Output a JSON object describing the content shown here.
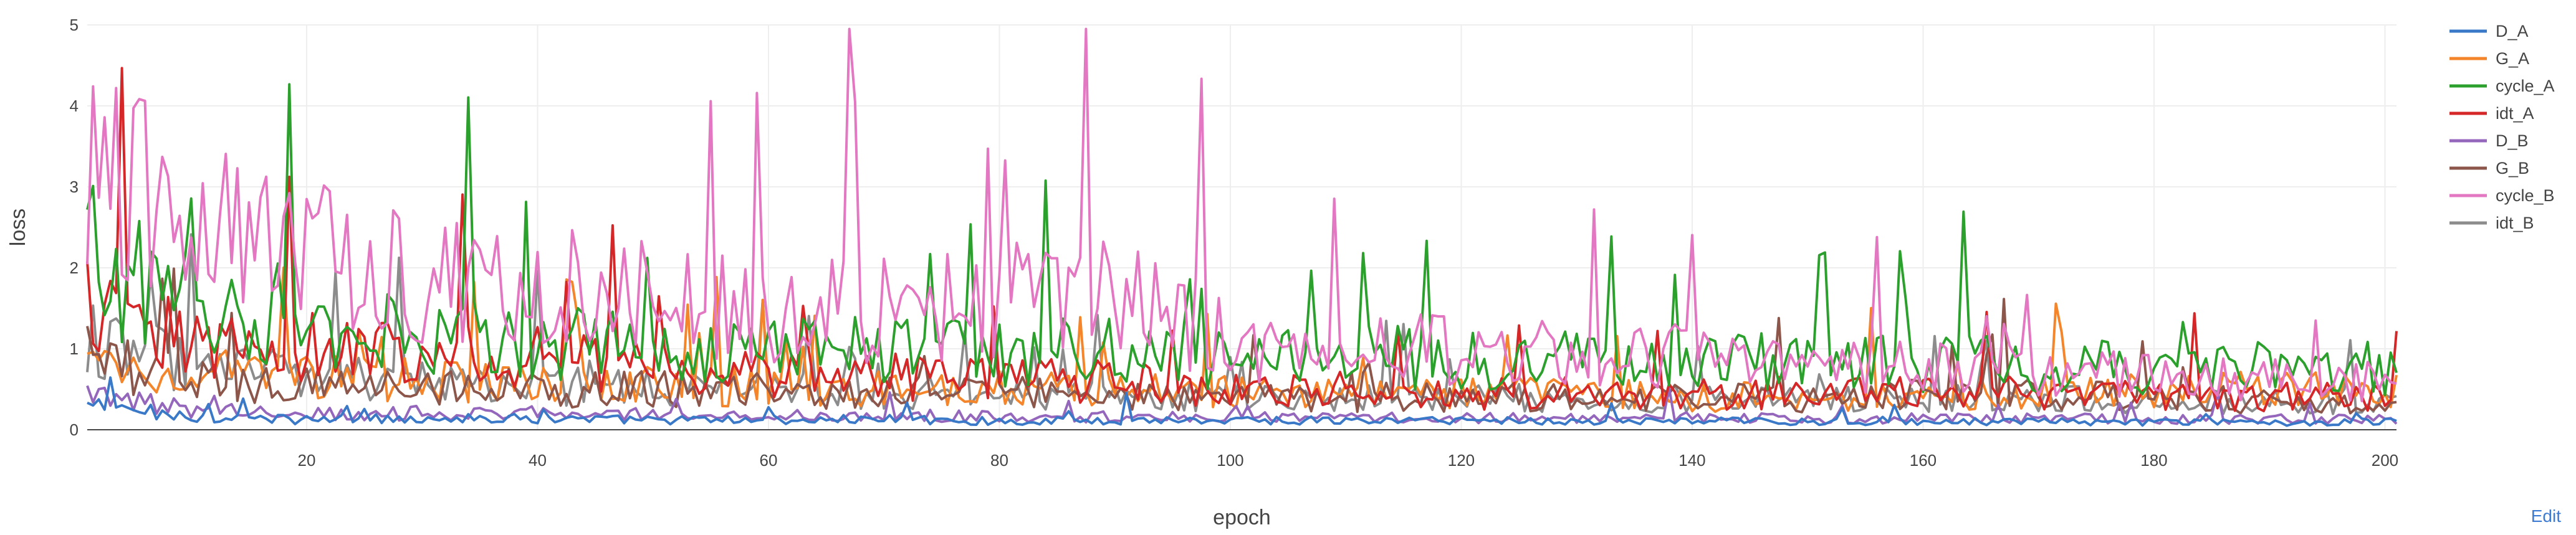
{
  "edit_label": "Edit",
  "chart_data": {
    "type": "line",
    "title": "",
    "xlabel": "epoch",
    "ylabel": "loss",
    "xlim": [
      1,
      201
    ],
    "ylim": [
      0,
      5
    ],
    "x_ticks": [
      20,
      40,
      60,
      80,
      100,
      120,
      140,
      160,
      180,
      200
    ],
    "y_ticks": [
      0,
      1,
      2,
      3,
      4,
      5
    ],
    "grid": true,
    "legend_position": "top-right",
    "x": [
      1,
      11,
      21,
      31,
      41,
      51,
      61,
      71,
      81,
      91,
      101,
      111,
      121,
      131,
      141,
      151,
      161,
      171,
      181,
      191,
      201
    ],
    "series": [
      {
        "name": "D_A",
        "color": "#3a78c8",
        "values": [
          0.3,
          0.15,
          0.12,
          0.15,
          0.13,
          0.12,
          0.12,
          0.13,
          0.1,
          0.12,
          0.12,
          0.11,
          0.12,
          0.1,
          0.11,
          0.1,
          0.09,
          0.1,
          0.09,
          0.09,
          0.1
        ]
      },
      {
        "name": "G_A",
        "color": "#f5852a",
        "values": [
          0.8,
          0.7,
          0.65,
          0.6,
          0.55,
          0.55,
          0.5,
          0.5,
          0.5,
          0.5,
          0.45,
          0.45,
          0.45,
          0.45,
          0.4,
          0.42,
          0.45,
          0.45,
          0.48,
          0.5,
          0.5
        ]
      },
      {
        "name": "cycle_A",
        "color": "#2ca02c",
        "values": [
          2.2,
          1.4,
          1.2,
          1.15,
          1.1,
          1.0,
          1.0,
          0.95,
          0.95,
          0.95,
          0.9,
          0.9,
          0.9,
          0.85,
          0.85,
          0.8,
          0.8,
          0.8,
          0.75,
          0.75,
          0.75
        ]
      },
      {
        "name": "idt_A",
        "color": "#d62728",
        "values": [
          1.6,
          1.0,
          1.1,
          0.95,
          0.9,
          0.75,
          0.7,
          0.65,
          0.6,
          0.6,
          0.5,
          0.5,
          0.45,
          0.45,
          0.45,
          0.45,
          0.45,
          0.45,
          0.4,
          0.4,
          0.4
        ]
      },
      {
        "name": "D_B",
        "color": "#9467bd",
        "values": [
          0.4,
          0.25,
          0.22,
          0.2,
          0.2,
          0.18,
          0.18,
          0.17,
          0.17,
          0.16,
          0.16,
          0.15,
          0.15,
          0.15,
          0.15,
          0.14,
          0.14,
          0.14,
          0.13,
          0.13,
          0.13
        ]
      },
      {
        "name": "G_B",
        "color": "#8c564b",
        "values": [
          0.9,
          0.6,
          0.55,
          0.55,
          0.5,
          0.5,
          0.45,
          0.45,
          0.45,
          0.45,
          0.4,
          0.4,
          0.4,
          0.4,
          0.4,
          0.38,
          0.45,
          0.45,
          0.4,
          0.35,
          0.35
        ]
      },
      {
        "name": "cycle_B",
        "color": "#e377c2",
        "values": [
          3.5,
          2.4,
          2.2,
          1.9,
          1.8,
          1.6,
          1.5,
          1.5,
          1.6,
          1.7,
          1.0,
          1.0,
          1.0,
          0.9,
          0.9,
          0.8,
          0.75,
          0.7,
          0.65,
          0.6,
          0.6
        ]
      },
      {
        "name": "idt_B",
        "color": "#8c8c8c",
        "values": [
          1.1,
          0.75,
          0.65,
          0.6,
          0.55,
          0.5,
          0.5,
          0.45,
          0.45,
          0.45,
          0.4,
          0.4,
          0.4,
          0.38,
          0.38,
          0.38,
          0.38,
          0.38,
          0.35,
          0.35,
          0.35
        ]
      }
    ]
  }
}
